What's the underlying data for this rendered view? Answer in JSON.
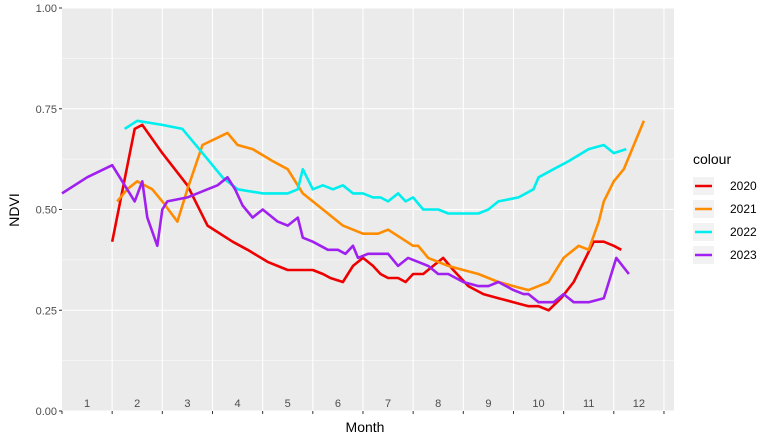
{
  "chart_data": {
    "type": "line",
    "title": "",
    "xlabel": "Month",
    "ylabel": "NDVI",
    "ylim": [
      0,
      1
    ],
    "xlim": [
      0.5,
      12.7
    ],
    "yticks": [
      "0.00",
      "0.25",
      "0.50",
      "0.75",
      "1.00"
    ],
    "month_labels": [
      "1",
      "2",
      "3",
      "4",
      "5",
      "6",
      "7",
      "8",
      "9",
      "10",
      "11",
      "12"
    ],
    "grid": true,
    "legend": {
      "title": "colour",
      "position": "right"
    },
    "series": [
      {
        "name": "2020",
        "color": "#ee0000",
        "x": [
          1.5,
          1.95,
          2.1,
          2.5,
          3.0,
          3.4,
          3.9,
          4.2,
          4.6,
          5.0,
          5.3,
          5.5,
          5.7,
          5.85,
          6.1,
          6.2,
          6.3,
          6.5,
          6.7,
          6.85,
          7.0,
          7.2,
          7.35,
          7.5,
          7.7,
          7.9,
          8.0,
          8.1,
          8.3,
          8.6,
          8.9,
          9.2,
          9.5,
          9.8,
          10.0,
          10.2,
          10.45,
          10.7,
          11.1,
          11.3,
          11.5,
          11.65
        ],
        "y": [
          0.42,
          0.7,
          0.71,
          0.64,
          0.56,
          0.46,
          0.42,
          0.4,
          0.37,
          0.35,
          0.35,
          0.35,
          0.34,
          0.33,
          0.32,
          0.34,
          0.36,
          0.38,
          0.36,
          0.34,
          0.33,
          0.33,
          0.32,
          0.34,
          0.34,
          0.36,
          0.37,
          0.38,
          0.35,
          0.31,
          0.29,
          0.28,
          0.27,
          0.26,
          0.26,
          0.25,
          0.28,
          0.32,
          0.42,
          0.42,
          0.41,
          0.4
        ]
      },
      {
        "name": "2021",
        "color": "#ff8c00",
        "x": [
          1.6,
          1.8,
          2.0,
          2.3,
          2.5,
          2.8,
          3.0,
          3.3,
          3.8,
          4.0,
          4.3,
          4.7,
          5.0,
          5.3,
          5.5,
          5.8,
          6.1,
          6.5,
          6.8,
          7.0,
          7.25,
          7.5,
          7.6,
          7.8,
          8.0,
          8.2,
          8.5,
          8.8,
          9.0,
          9.2,
          9.5,
          9.8,
          10.0,
          10.2,
          10.5,
          10.8,
          11.0,
          11.2,
          11.3,
          11.5,
          11.7,
          12.1
        ],
        "y": [
          0.52,
          0.55,
          0.57,
          0.55,
          0.52,
          0.47,
          0.55,
          0.66,
          0.69,
          0.66,
          0.65,
          0.62,
          0.6,
          0.54,
          0.52,
          0.49,
          0.46,
          0.44,
          0.44,
          0.45,
          0.43,
          0.41,
          0.41,
          0.38,
          0.37,
          0.36,
          0.35,
          0.34,
          0.33,
          0.32,
          0.31,
          0.3,
          0.31,
          0.32,
          0.38,
          0.41,
          0.4,
          0.47,
          0.52,
          0.57,
          0.6,
          0.72
        ]
      },
      {
        "name": "2022",
        "color": "#00eeee",
        "x": [
          1.75,
          2.0,
          2.5,
          2.9,
          3.3,
          3.7,
          4.0,
          4.5,
          5.0,
          5.2,
          5.3,
          5.5,
          5.7,
          5.9,
          6.1,
          6.3,
          6.5,
          6.7,
          6.85,
          7.0,
          7.2,
          7.35,
          7.5,
          7.7,
          8.0,
          8.2,
          8.5,
          8.8,
          9.0,
          9.2,
          9.6,
          9.9,
          10.0,
          10.3,
          10.6,
          11.0,
          11.3,
          11.5,
          11.75
        ],
        "y": [
          0.7,
          0.72,
          0.71,
          0.7,
          0.64,
          0.58,
          0.55,
          0.54,
          0.54,
          0.55,
          0.6,
          0.55,
          0.56,
          0.55,
          0.56,
          0.54,
          0.54,
          0.53,
          0.53,
          0.52,
          0.54,
          0.52,
          0.53,
          0.5,
          0.5,
          0.49,
          0.49,
          0.49,
          0.5,
          0.52,
          0.53,
          0.55,
          0.58,
          0.6,
          0.62,
          0.65,
          0.66,
          0.64,
          0.65
        ]
      },
      {
        "name": "2023",
        "color": "#a020f0",
        "x": [
          0.5,
          1.0,
          1.5,
          1.95,
          2.1,
          2.2,
          2.4,
          2.5,
          2.6,
          3.0,
          3.4,
          3.6,
          3.8,
          3.95,
          4.1,
          4.3,
          4.5,
          4.8,
          5.0,
          5.2,
          5.3,
          5.5,
          5.8,
          6.0,
          6.15,
          6.3,
          6.4,
          6.6,
          6.8,
          7.0,
          7.2,
          7.4,
          7.6,
          7.8,
          8.0,
          8.2,
          8.5,
          8.8,
          9.0,
          9.2,
          9.5,
          9.7,
          9.8,
          10.0,
          10.3,
          10.5,
          10.7,
          11.0,
          11.3,
          11.55,
          11.8
        ],
        "y": [
          0.54,
          0.58,
          0.61,
          0.52,
          0.57,
          0.48,
          0.41,
          0.5,
          0.52,
          0.53,
          0.55,
          0.56,
          0.58,
          0.55,
          0.51,
          0.48,
          0.5,
          0.47,
          0.46,
          0.48,
          0.43,
          0.42,
          0.4,
          0.4,
          0.39,
          0.41,
          0.38,
          0.39,
          0.39,
          0.39,
          0.36,
          0.38,
          0.37,
          0.36,
          0.34,
          0.34,
          0.32,
          0.31,
          0.31,
          0.32,
          0.3,
          0.29,
          0.29,
          0.27,
          0.27,
          0.29,
          0.27,
          0.27,
          0.28,
          0.38,
          0.34
        ]
      }
    ]
  }
}
